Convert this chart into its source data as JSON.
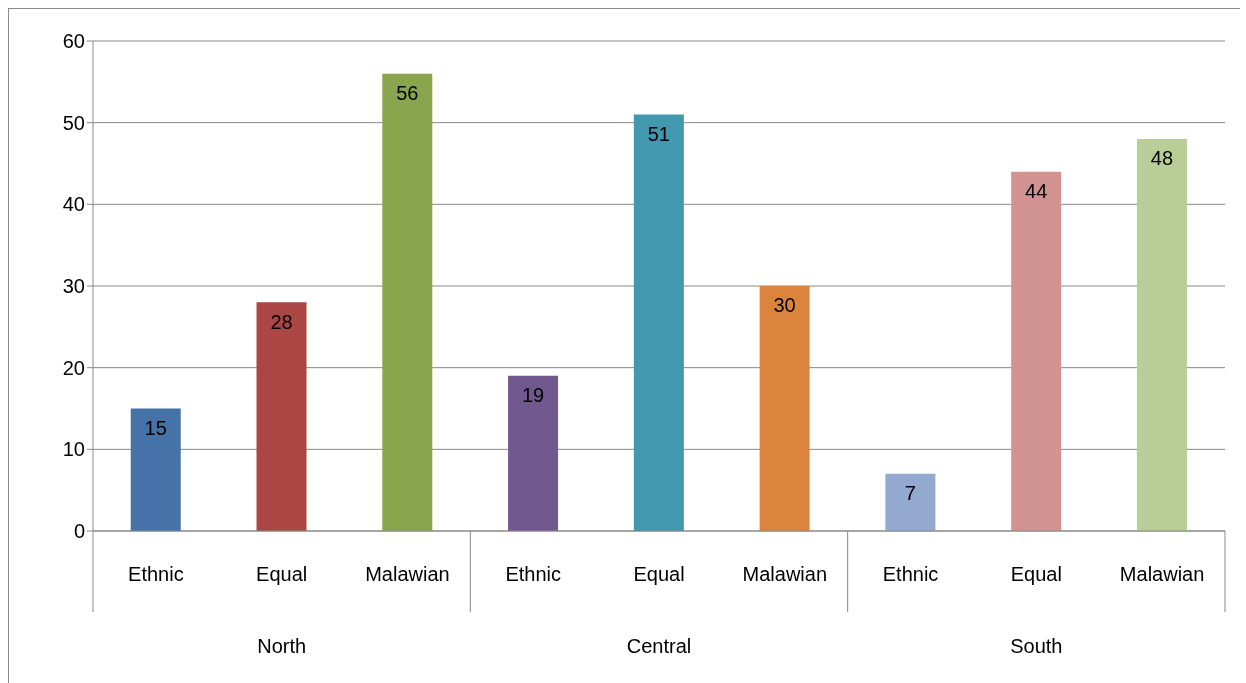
{
  "chart_data": {
    "type": "bar",
    "categories": [
      "Ethnic",
      "Equal",
      "Malawian",
      "Ethnic",
      "Equal",
      "Malawian",
      "Ethnic",
      "Equal",
      "Malawian"
    ],
    "values": [
      15,
      28,
      56,
      19,
      51,
      30,
      7,
      44,
      48
    ],
    "colors": [
      "#4572a7",
      "#aa4643",
      "#89a54e",
      "#71588f",
      "#4198af",
      "#db843d",
      "#93a9cf",
      "#d19392",
      "#b9cd96"
    ],
    "annotations": [
      "North",
      "Central",
      "South"
    ],
    "ylim": [
      0,
      60
    ],
    "yticks": [
      0,
      10,
      20,
      30,
      40,
      50,
      60
    ],
    "grid": "y",
    "data_labels": true
  }
}
